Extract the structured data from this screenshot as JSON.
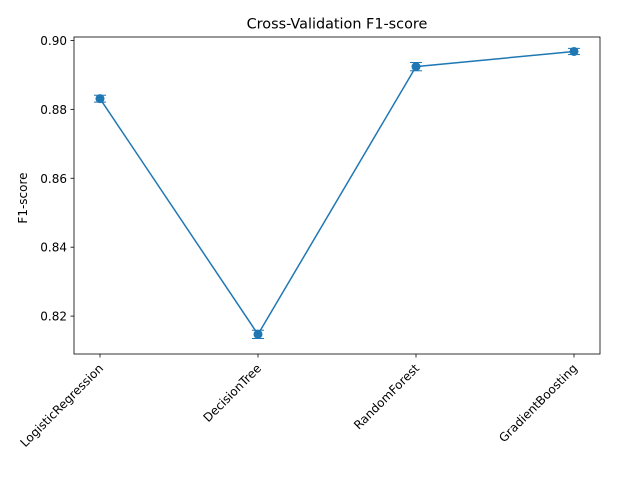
{
  "chart_data": {
    "type": "line",
    "title": "Cross-Validation F1-score",
    "xlabel": "",
    "ylabel": "F1-score",
    "categories": [
      "LogisticRegression",
      "DecisionTree",
      "RandomForest",
      "GradientBoosting"
    ],
    "series": [
      {
        "values": [
          0.8831,
          0.8147,
          0.8924,
          0.8968
        ],
        "errors": [
          0.001,
          0.0012,
          0.0012,
          0.0009
        ],
        "color": "#1f77b4",
        "marker": "circle"
      }
    ],
    "ylim": [
      0.809,
      0.901
    ],
    "yticks": [
      0.82,
      0.84,
      0.86,
      0.88,
      0.9
    ],
    "ytick_labels": [
      "0.82",
      "0.84",
      "0.86",
      "0.88",
      "0.90"
    ],
    "xtick_rotation": 45,
    "grid": false,
    "legend": false
  }
}
